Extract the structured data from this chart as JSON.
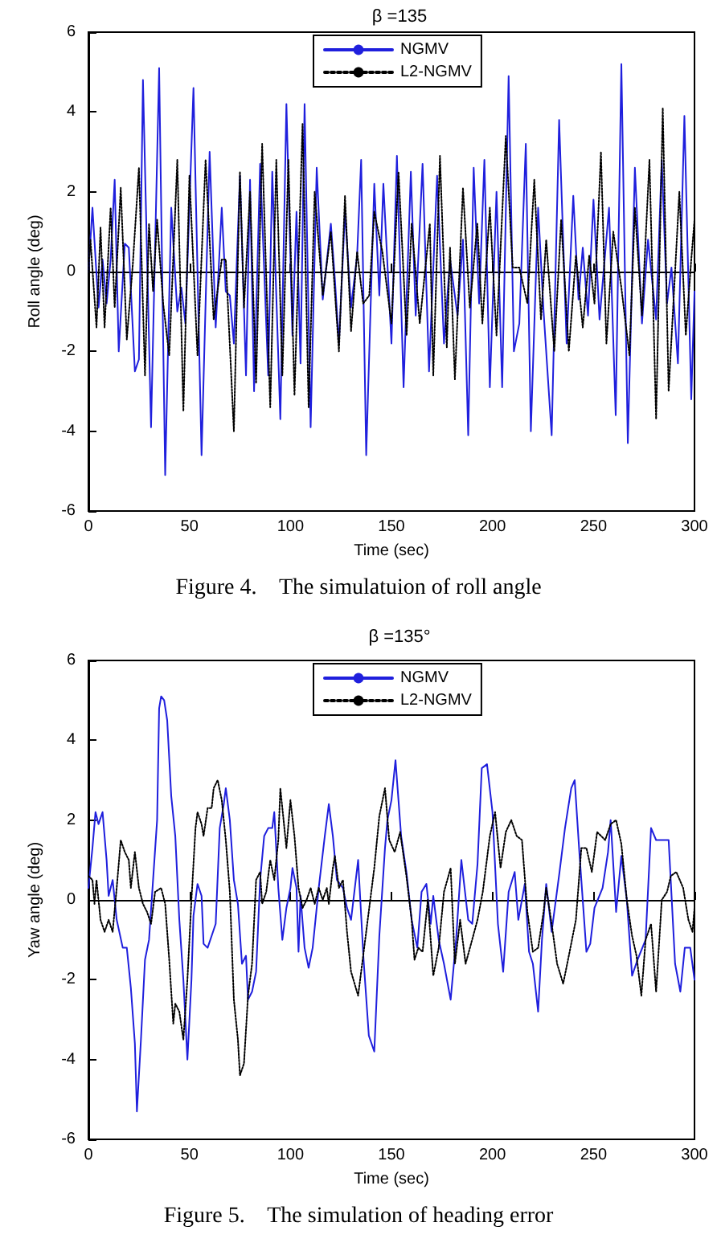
{
  "chart_data": [
    {
      "type": "line",
      "title": "β =135",
      "xlabel": "Time (sec)",
      "ylabel": "Roll angle (deg)",
      "xlim": [
        0,
        300
      ],
      "xticks": [
        0,
        50,
        100,
        150,
        200,
        250,
        300
      ],
      "ylim": [
        -6,
        6
      ],
      "yticks": [
        -6,
        -4,
        -2,
        0,
        2,
        4,
        6
      ],
      "legend": "top",
      "annotations": [
        "Figure 4.    The simulatuion of roll angle"
      ],
      "series": [
        {
          "name": "NGMV",
          "color": "#1f1fdd",
          "line_style": "solid",
          "x": [
            0,
            2,
            5,
            7,
            9,
            11,
            13,
            15,
            18,
            20,
            23,
            25,
            27,
            31,
            35,
            38,
            41,
            44,
            46,
            48,
            52,
            56,
            60,
            63,
            66,
            68,
            70,
            72,
            75,
            78,
            80,
            82,
            85,
            89,
            91,
            95,
            98,
            101,
            103,
            105,
            107,
            110,
            113,
            116,
            120,
            122,
            124,
            127,
            130,
            133,
            135,
            137.5,
            141.5,
            144,
            146,
            150,
            152.7,
            156,
            159.6,
            162,
            165.4,
            168.6,
            172.6,
            176,
            179,
            182.7,
            185.4,
            188,
            190.7,
            193.4,
            196,
            198.7,
            202,
            204.8,
            208,
            210.6,
            213.3,
            216.5,
            219,
            222.6,
            225.3,
            229.3,
            233,
            236.7,
            240,
            242.6,
            244.7,
            247.3,
            250,
            253,
            257.7,
            261,
            263.8,
            267,
            270.5,
            274,
            277,
            281,
            283.8,
            286.4,
            288.6,
            291.8,
            295,
            298.4,
            300
          ],
          "values": [
            0,
            1.6,
            -0.9,
            0.3,
            -0.8,
            0.3,
            2.3,
            -2,
            0.7,
            0.6,
            -2.5,
            -2.2,
            4.8,
            -3.9,
            5.1,
            -5.1,
            1.6,
            -1,
            -0.4,
            -1.3,
            4.6,
            -4.6,
            3,
            -1.4,
            1.6,
            -0.5,
            -0.6,
            -1.8,
            2.4,
            -2.6,
            2.3,
            -3,
            2.7,
            -2.6,
            2.5,
            -3.7,
            4.2,
            -1.6,
            1.5,
            -2.3,
            4.2,
            -3.9,
            2.6,
            -0.7,
            1.2,
            -0.2,
            -1.8,
            1.5,
            -0.9,
            0.4,
            2.8,
            -4.6,
            2.2,
            -0.6,
            2.2,
            -1.8,
            2.9,
            -2.9,
            2.5,
            -1.1,
            2.7,
            -2.5,
            2.4,
            -1.8,
            0.3,
            -1.1,
            0.8,
            -4.1,
            2.6,
            -0.8,
            2.8,
            -2.9,
            2,
            -2.9,
            4.9,
            -2,
            -1.3,
            3.2,
            -4,
            1.6,
            -1,
            -4.1,
            3.8,
            -1.8,
            1.9,
            -0.7,
            0.6,
            -1.1,
            1.8,
            -1.2,
            1.6,
            -3.6,
            5.2,
            -4.3,
            2.6,
            -1.3,
            0.8,
            -1.2,
            2.8,
            -0.8,
            0.1,
            -2.3,
            3.9,
            -3.2,
            -0.5
          ]
        },
        {
          "name": "L2-NGMV",
          "color": "#000000",
          "line_style": "dotted",
          "x": [
            0,
            1,
            4,
            6,
            8,
            11,
            13,
            16,
            19,
            22,
            25,
            28,
            30,
            32,
            34,
            37,
            40,
            44,
            47,
            50,
            54,
            58,
            62,
            66,
            68,
            72,
            75,
            77,
            80,
            83,
            86,
            90,
            93,
            96,
            99,
            102,
            106,
            109,
            112,
            116,
            120,
            124,
            127,
            130,
            133,
            136,
            139,
            141.5,
            145.5,
            150,
            153.5,
            157.5,
            160,
            164,
            169,
            170.7,
            174,
            177.4,
            179,
            181.4,
            185.4,
            188.8,
            192.5,
            195,
            198.7,
            202,
            206.6,
            210,
            213.3,
            217.3,
            220.7,
            224,
            226.6,
            230.6,
            234,
            237.8,
            241.3,
            244.7,
            247.9,
            250.5,
            253.7,
            256.4,
            259.8,
            263.8,
            267.8,
            270.5,
            274,
            277.7,
            281,
            284.3,
            287.2,
            290.4,
            292.5,
            295.7,
            298.4,
            300
          ],
          "values": [
            0,
            0.8,
            -1.4,
            1.1,
            -1.4,
            1.6,
            -0.9,
            2.1,
            -1.7,
            0.2,
            2.6,
            -2.6,
            1.2,
            -0.5,
            1.3,
            -0.8,
            -2.1,
            2.8,
            -3.5,
            2.4,
            -2.1,
            2.8,
            -1.2,
            0.3,
            0.3,
            -4,
            2.5,
            -0.9,
            2,
            -2.8,
            3.2,
            -3.4,
            2.8,
            -2.6,
            2.8,
            -3.1,
            3.7,
            -3.4,
            2,
            -0.6,
            1,
            -2,
            1.9,
            -1.5,
            0.5,
            -0.8,
            -0.6,
            1.5,
            0.5,
            -1.3,
            2.5,
            -1.6,
            1.2,
            -1.3,
            1.2,
            -2.6,
            2.9,
            -1.9,
            0.6,
            -2.7,
            2.1,
            -0.9,
            1.2,
            -1.3,
            1.6,
            -1.6,
            3.4,
            0.1,
            0.1,
            -0.8,
            2.3,
            -1.2,
            0.8,
            -2,
            1.3,
            -2,
            0.4,
            -1.4,
            0.4,
            -0.8,
            3,
            -1.8,
            1,
            -0.4,
            -2.1,
            1.6,
            -1.1,
            2.8,
            -3.7,
            4.1,
            -3,
            0,
            2,
            -1.6,
            0.3,
            1.3
          ]
        }
      ]
    },
    {
      "type": "line",
      "title": "β =135°",
      "xlabel": "Time (sec)",
      "ylabel": "Yaw angle (deg)",
      "xlim": [
        0,
        300
      ],
      "xticks": [
        0,
        50,
        100,
        150,
        200,
        250,
        300
      ],
      "ylim": [
        -6,
        6
      ],
      "yticks": [
        -6,
        -4,
        -2,
        0,
        2,
        4,
        6
      ],
      "legend": "top",
      "annotations": [
        "Figure 5.    The simulation of heading error"
      ],
      "series": [
        {
          "name": "NGMV",
          "color": "#1f1fdd",
          "line_style": "solid",
          "x": [
            0,
            2,
            3.5,
            5,
            7,
            9,
            10,
            12,
            14,
            17,
            19,
            21,
            23,
            24,
            26,
            28,
            30,
            32,
            34,
            35,
            36,
            37.5,
            39,
            41,
            43,
            45,
            47,
            49,
            51,
            52,
            54,
            56,
            57,
            59,
            61,
            63,
            65,
            67,
            68,
            70,
            72,
            74,
            76,
            78,
            79,
            81,
            83,
            85,
            87,
            89,
            91,
            92,
            94,
            96,
            98,
            100,
            101,
            103,
            104,
            105,
            107,
            109,
            111,
            114,
            117,
            119,
            121,
            123,
            126,
            128,
            130,
            133.5,
            136.2,
            138.8,
            141.5,
            144,
            146.8,
            148,
            150,
            152,
            154.8,
            157.4,
            160,
            162.8,
            164.9,
            167.3,
            169.4,
            170.7,
            173.4,
            176,
            179.3,
            182,
            184.6,
            188,
            190,
            192.6,
            194.7,
            197.3,
            200,
            202.7,
            205.3,
            208,
            211,
            212.8,
            216,
            218.1,
            220,
            222.6,
            224.5,
            226.6,
            229.3,
            233.2,
            235.9,
            239,
            240.7,
            243,
            246.5,
            248.4,
            250.5,
            254.5,
            257.2,
            258.5,
            261.2,
            263.8,
            266.5,
            269.1,
            271.8,
            275.8,
            278.5,
            281,
            283.8,
            287.2,
            290.4,
            293,
            295.2,
            297.9,
            300
          ],
          "values": [
            0.3,
            1.3,
            2.2,
            1.9,
            2.2,
            1,
            0.1,
            0.5,
            -0.5,
            -1.2,
            -1.2,
            -2.2,
            -3.6,
            -5.3,
            -3.5,
            -1.5,
            -1,
            0.5,
            2,
            4.8,
            5.1,
            5,
            4.5,
            2.6,
            1.6,
            -0.5,
            -2,
            -4,
            -2,
            -0.4,
            0.4,
            0.1,
            -1.1,
            -1.2,
            -0.9,
            -0.6,
            1.8,
            2.4,
            2.8,
            2,
            0.5,
            -0.1,
            -1.6,
            -1.4,
            -2.5,
            -2.3,
            -1.8,
            0.5,
            1.6,
            1.8,
            1.8,
            2.2,
            0.3,
            -1,
            -0.2,
            0.3,
            0.8,
            0.3,
            -1.3,
            0.1,
            -1.2,
            -1.7,
            -1.2,
            0.3,
            1.6,
            2.4,
            1.6,
            0.5,
            0.3,
            -0.2,
            -0.5,
            1,
            -1.5,
            -3.4,
            -3.8,
            -0.9,
            1.3,
            2,
            2.5,
            3.5,
            1.6,
            0.7,
            -0.5,
            -1.2,
            0.2,
            0.4,
            -0.6,
            0.1,
            -1,
            -1.6,
            -2.5,
            -1,
            1,
            -0.5,
            -0.6,
            0.9,
            3.3,
            3.4,
            2.2,
            -0.6,
            -1.8,
            0.2,
            0.7,
            -0.5,
            0.4,
            -1.3,
            -1.6,
            -2.8,
            -1,
            0.4,
            -0.8,
            0.7,
            1.8,
            2.8,
            3,
            1.2,
            -1.3,
            -1.1,
            -0.2,
            0.3,
            1.2,
            2,
            -0.3,
            1.1,
            0,
            -1.9,
            -1.5,
            -1,
            1.8,
            1.5,
            1.5,
            1.5,
            -1.6,
            -2.3,
            -1.2,
            -1.2,
            -2
          ]
        },
        {
          "name": "L2-NGMV",
          "color": "#000000",
          "line_style": "dotted",
          "x": [
            0,
            2,
            3,
            4,
            6,
            8,
            10,
            12,
            14,
            16,
            18,
            20,
            21,
            23,
            25,
            27,
            29,
            31,
            33,
            36,
            38,
            40,
            42,
            43,
            45,
            47,
            49,
            51,
            53,
            54,
            56,
            57,
            59,
            61,
            62,
            64,
            66,
            68,
            70,
            72,
            74,
            75,
            77,
            79,
            81,
            83,
            85,
            86,
            88,
            90,
            92,
            94,
            95,
            97,
            98,
            100,
            102,
            104,
            106,
            108,
            110,
            112,
            114,
            116,
            118,
            119,
            121,
            122,
            124,
            126,
            128,
            130,
            133.5,
            137.5,
            141.5,
            144,
            146.8,
            148.9,
            151.6,
            154.3,
            157.4,
            160,
            161.4,
            163.3,
            165.4,
            168,
            170.7,
            173.4,
            176,
            179.3,
            181.4,
            184,
            186.7,
            189.4,
            192.6,
            195.2,
            198.7,
            201.3,
            204,
            206.6,
            209.3,
            212,
            214.6,
            217.3,
            220,
            222.6,
            225.3,
            226.6,
            229.3,
            232,
            235,
            237.8,
            241.3,
            244,
            246.5,
            249.2,
            251.8,
            255.8,
            258.5,
            261.2,
            263.8,
            266.5,
            269.1,
            271.3,
            273.7,
            275.8,
            278.5,
            281,
            283.8,
            286.4,
            288.3,
            291,
            294.4,
            297,
            299,
            300
          ],
          "values": [
            0.6,
            0.5,
            -0.1,
            0.5,
            -0.5,
            -0.8,
            -0.5,
            -0.8,
            0.3,
            1.5,
            1.2,
            1,
            0.3,
            1.2,
            0.3,
            -0.1,
            -0.3,
            -0.6,
            0.2,
            0.3,
            -0.1,
            -1.5,
            -3.1,
            -2.6,
            -2.8,
            -3.5,
            -2,
            0,
            1.8,
            2.2,
            1.9,
            1.6,
            2.3,
            2.3,
            2.8,
            3,
            2.5,
            1.5,
            0.2,
            -2.5,
            -3.5,
            -4.4,
            -4.1,
            -2.4,
            -1.6,
            0.5,
            0.7,
            -0.1,
            0.2,
            1,
            0.5,
            1.5,
            2.8,
            1.8,
            1.3,
            2.5,
            1.6,
            0.3,
            -0.2,
            0,
            0.3,
            -0.1,
            0.3,
            0,
            0.3,
            -0.1,
            0.8,
            1.1,
            0.3,
            0.5,
            -0.8,
            -1.8,
            -2.4,
            -0.8,
            0.8,
            2.1,
            2.8,
            1.5,
            1.2,
            1.7,
            0.6,
            -0.5,
            -1.5,
            -1.2,
            -1.3,
            0,
            -1.9,
            -1.2,
            0.2,
            0.8,
            -1.6,
            -0.5,
            -1.6,
            -1.1,
            -0.5,
            0.2,
            1.6,
            2.2,
            0.8,
            1.7,
            2,
            1.6,
            1.5,
            -0.3,
            -1.3,
            -1.2,
            -0.3,
            0.3,
            -0.6,
            -1.6,
            -2.1,
            -1.4,
            -0.5,
            1.3,
            1.3,
            0.7,
            1.7,
            1.5,
            1.9,
            2,
            1.4,
            0,
            -0.9,
            -1.4,
            -2.4,
            -1,
            -0.6,
            -2.3,
            0,
            0.2,
            0.6,
            0.7,
            0.3,
            -0.5,
            -0.8,
            -0.2
          ]
        }
      ]
    }
  ]
}
